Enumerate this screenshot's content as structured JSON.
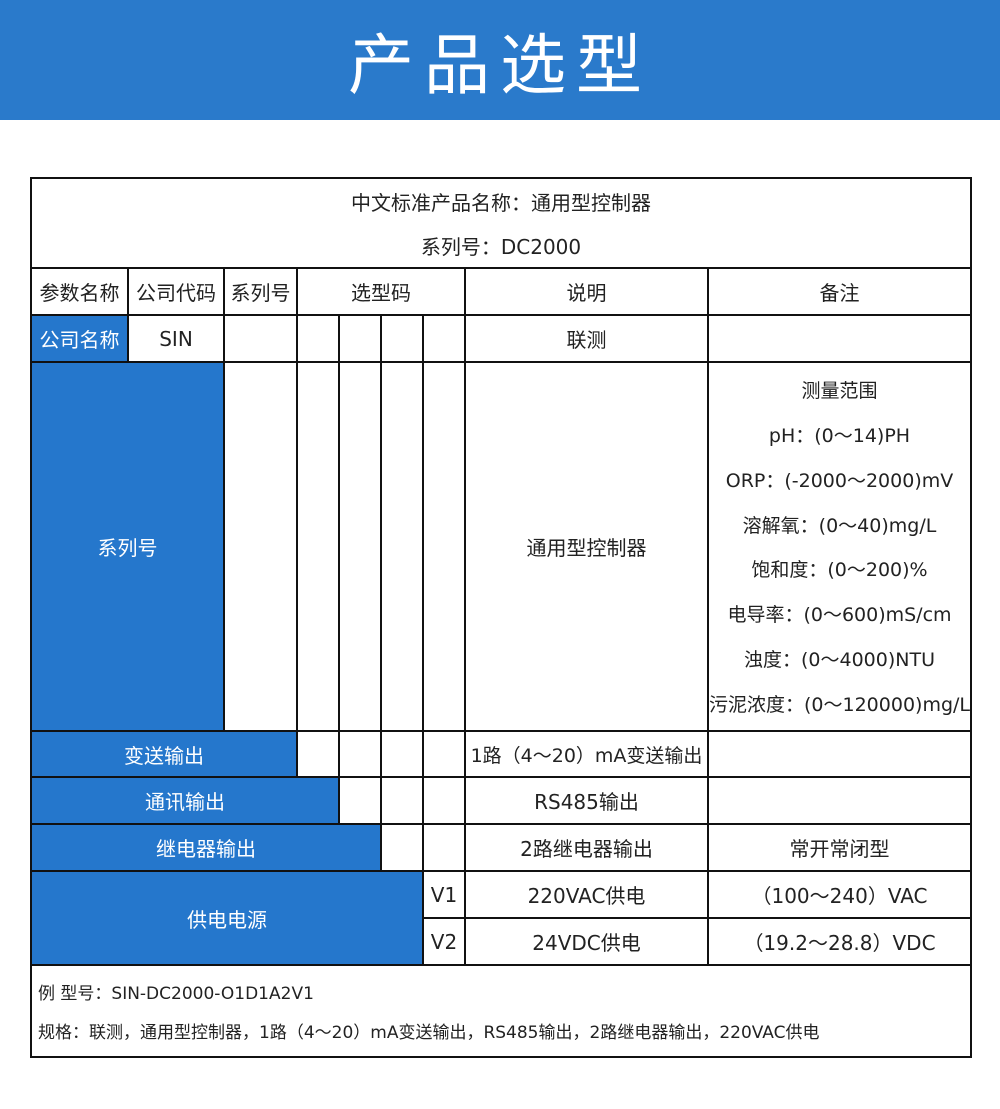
{
  "title": "产品选型",
  "table": {
    "product_name": "中文标准产品名称：通用型控制器",
    "series_no": "系列号：DC2000",
    "headers": [
      "参数名称",
      "公司代码",
      "系列号",
      "选型码",
      "说明",
      "备注"
    ],
    "company": {
      "label": "公司名称",
      "code": "SIN",
      "desc": "联测"
    },
    "series": {
      "label": "系列号",
      "desc": "通用型控制器",
      "notes": [
        "测量范围",
        "pH：(0～14)PH",
        "ORP：(-2000～2000)mV",
        "溶解氧：(0～40)mg/L",
        "饱和度：(0～200)%",
        "电导率：(0～600)mS/cm",
        "浊度：(0～4000)NTU",
        "污泥浓度：(0～120000)mg/L"
      ]
    },
    "transmit": {
      "label": "变送输出",
      "desc": "1路（4～20）mA变送输出"
    },
    "comm": {
      "label": "通讯输出",
      "desc": "RS485输出"
    },
    "relay": {
      "label": "继电器输出",
      "desc": "2路继电器输出",
      "note": "常开常闭型"
    },
    "power": {
      "label": "供电电源",
      "options": [
        {
          "code": "V1",
          "desc": "220VAC供电",
          "note": "（100～240）VAC"
        },
        {
          "code": "V2",
          "desc": "24VDC供电",
          "note": "（19.2～28.8）VDC"
        }
      ]
    },
    "example_model": "例 型号：SIN-DC2000-O1D1A2V1",
    "example_spec": "规格：联测，通用型控制器，1路（4～20）mA变送输出，RS485输出，2路继电器输出，220VAC供电"
  }
}
